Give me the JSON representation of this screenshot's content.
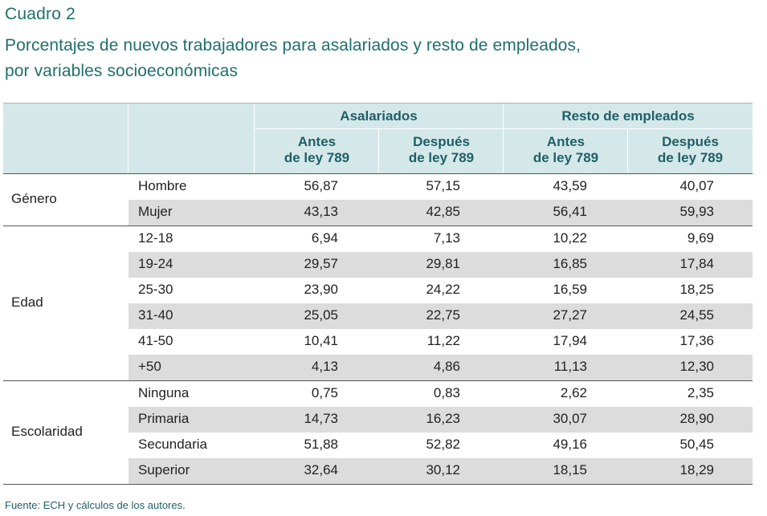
{
  "cuadro_label": "Cuadro 2",
  "title_line1": "Porcentajes de nuevos trabajadores para asalariados y resto de empleados,",
  "title_line2": "por variables socioeconómicas",
  "header": {
    "group1": "Asalariados",
    "group2": "Resto de empleados",
    "sub1_line1": "Antes",
    "sub1_line2": "de ley 789",
    "sub2_line1": "Después",
    "sub2_line2": "de ley 789",
    "sub3_line1": "Antes",
    "sub3_line2": "de ley 789",
    "sub4_line1": "Después",
    "sub4_line2": "de ley 789"
  },
  "sections": [
    {
      "label": "Género",
      "rows": [
        {
          "cat": "Hombre",
          "a1": "56,87",
          "a2": "57,15",
          "r1": "43,59",
          "r2": "40,07"
        },
        {
          "cat": "Mujer",
          "a1": "43,13",
          "a2": "42,85",
          "r1": "56,41",
          "r2": "59,93"
        }
      ]
    },
    {
      "label": "Edad",
      "rows": [
        {
          "cat": "12-18",
          "a1": "6,94",
          "a2": "7,13",
          "r1": "10,22",
          "r2": "9,69"
        },
        {
          "cat": "19-24",
          "a1": "29,57",
          "a2": "29,81",
          "r1": "16,85",
          "r2": "17,84"
        },
        {
          "cat": "25-30",
          "a1": "23,90",
          "a2": "24,22",
          "r1": "16,59",
          "r2": "18,25"
        },
        {
          "cat": "31-40",
          "a1": "25,05",
          "a2": "22,75",
          "r1": "27,27",
          "r2": "24,55"
        },
        {
          "cat": "41-50",
          "a1": "10,41",
          "a2": "11,22",
          "r1": "17,94",
          "r2": "17,36"
        },
        {
          "cat": "+50",
          "a1": "4,13",
          "a2": "4,86",
          "r1": "11,13",
          "r2": "12,30"
        }
      ]
    },
    {
      "label": "Escolaridad",
      "rows": [
        {
          "cat": "Ninguna",
          "a1": "0,75",
          "a2": "0,83",
          "r1": "2,62",
          "r2": "2,35"
        },
        {
          "cat": "Primaria",
          "a1": "14,73",
          "a2": "16,23",
          "r1": "30,07",
          "r2": "28,90"
        },
        {
          "cat": "Secundaria",
          "a1": "51,88",
          "a2": "52,82",
          "r1": "49,16",
          "r2": "50,45"
        },
        {
          "cat": "Superior",
          "a1": "32,64",
          "a2": "30,12",
          "r1": "18,15",
          "r2": "18,29"
        }
      ]
    }
  ],
  "source": "Fuente: ECH y cálculos de los autores."
}
